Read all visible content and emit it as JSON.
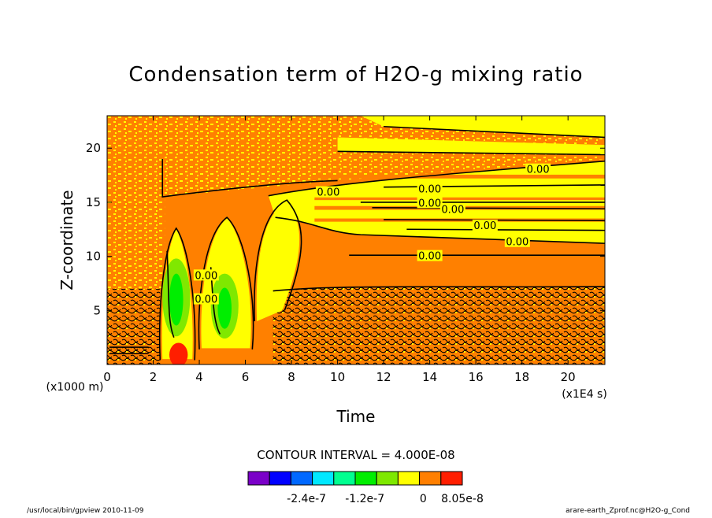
{
  "chart_data": {
    "type": "heatmap",
    "title": "Condensation term of H2O-g mixing ratio",
    "xlabel": "Time",
    "ylabel": "Z-coordinate",
    "x_unit": "(x1E4 s)",
    "y_unit": "(x1000 m)",
    "xlim": [
      0,
      21.6
    ],
    "ylim": [
      0,
      23
    ],
    "x_ticks": [
      0,
      2,
      4,
      6,
      8,
      10,
      12,
      14,
      16,
      18,
      20
    ],
    "y_ticks": [
      5,
      10,
      15,
      20
    ],
    "contour_interval_text": "CONTOUR INTERVAL = 4.000E-08",
    "colorbar": {
      "colors": [
        "#7a00c8",
        "#0000ff",
        "#0068ff",
        "#00e8ff",
        "#00ff90",
        "#00ee00",
        "#7ee800",
        "#ffff00",
        "#ff7f00",
        "#ff1e00"
      ],
      "labels": [
        "-2.4e-7",
        "-1.2e-7",
        "0",
        "8.05e-8"
      ],
      "label_positions": [
        -2.4e-07,
        -1.2e-07,
        0,
        8.05e-08
      ],
      "range": [
        -3.6e-07,
        8.05e-08
      ]
    },
    "contour_labels": [
      {
        "text": "0.00",
        "x": 18.7,
        "y": 18.0
      },
      {
        "text": "0.00",
        "x": 9.6,
        "y": 15.9
      },
      {
        "text": "0.00",
        "x": 14.0,
        "y": 16.2
      },
      {
        "text": "0.00",
        "x": 14.0,
        "y": 14.9
      },
      {
        "text": "0.00",
        "x": 15.0,
        "y": 14.3
      },
      {
        "text": "0.00",
        "x": 16.4,
        "y": 12.8
      },
      {
        "text": "0.00",
        "x": 17.8,
        "y": 11.3
      },
      {
        "text": "0.00",
        "x": 14.0,
        "y": 10.0
      },
      {
        "text": "0.00",
        "x": 4.3,
        "y": 8.2
      },
      {
        "text": "0.00",
        "x": 4.3,
        "y": 6.0
      }
    ],
    "regions": [
      {
        "name": "upper-noisy",
        "x": [
          0,
          5
        ],
        "y": [
          16.5,
          23
        ],
        "value": 0
      },
      {
        "name": "upper-stratified-yellow",
        "x": [
          8,
          21.6
        ],
        "y": [
          11,
          19
        ],
        "value": 2e-08
      },
      {
        "name": "lower-noisy",
        "x": [
          7,
          21.6
        ],
        "y": [
          0,
          7
        ],
        "value": 0
      },
      {
        "name": "negative-cell",
        "x": [
          2.5,
          3.3
        ],
        "y": [
          2,
          10
        ],
        "value": -1.6e-07
      },
      {
        "name": "negative-cell",
        "x": [
          4.6,
          5.3
        ],
        "y": [
          3,
          8
        ],
        "value": -1.2e-07
      },
      {
        "name": "positive-cell",
        "x": [
          2.8,
          3.3
        ],
        "y": [
          0.2,
          1.8
        ],
        "value": 8.05e-08
      }
    ]
  },
  "footer": {
    "left": "/usr/local/bin/gpview  2010-11-09",
    "right": "arare-earth_Zprof.nc@H2O-g_Cond"
  }
}
